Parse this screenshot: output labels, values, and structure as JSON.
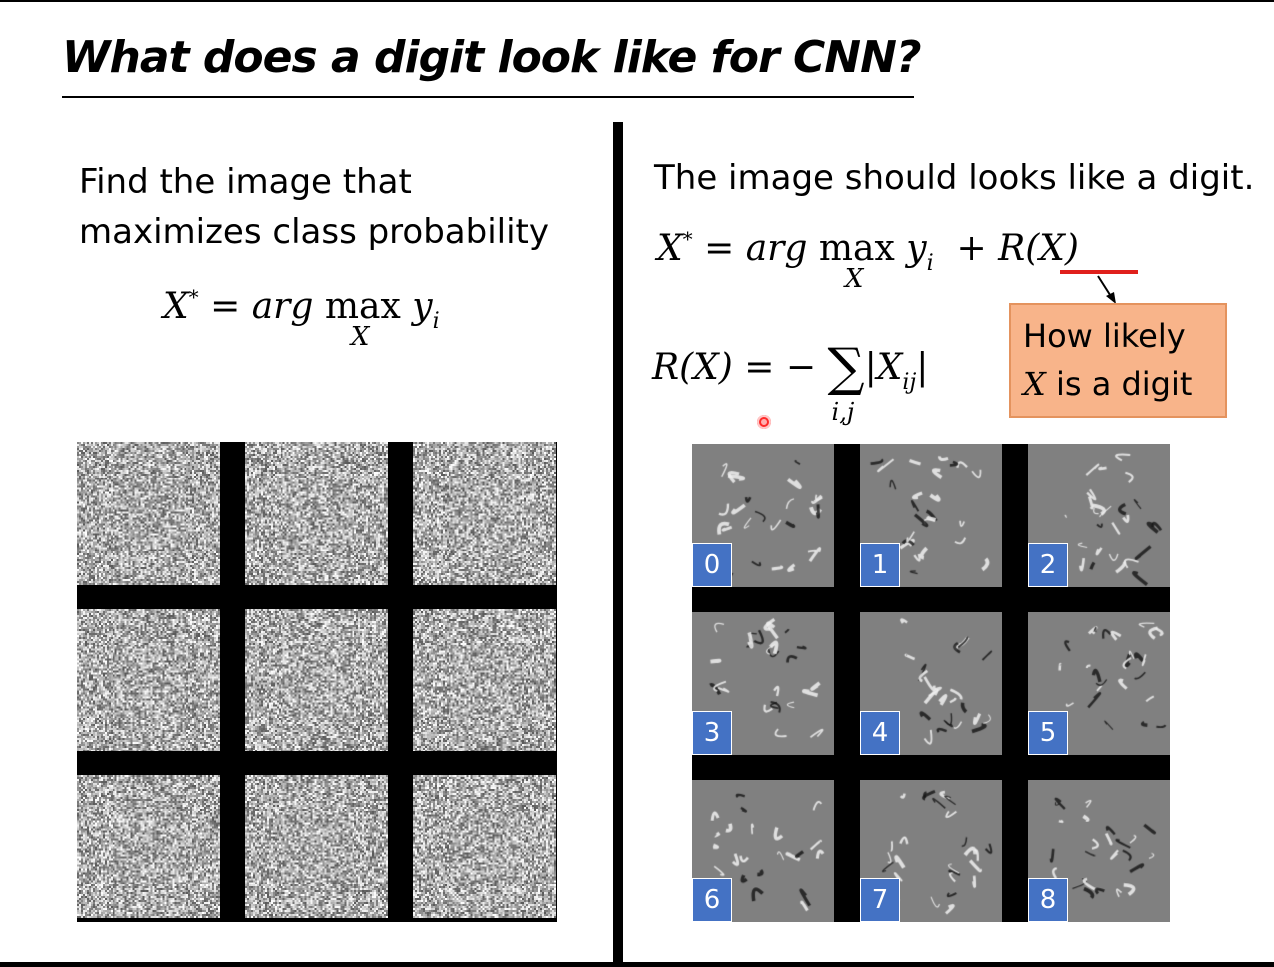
{
  "slide": {
    "title": "What does a digit look like for CNN?"
  },
  "left": {
    "line1": "Find the image that",
    "line2": "maximizes class probability",
    "formula": {
      "lhs": "X",
      "star": "*",
      "eq": "=",
      "arg": "arg",
      "max": "max",
      "under": "X",
      "y": "y",
      "sub": "i"
    }
  },
  "right": {
    "heading": "The image should looks like a digit.",
    "formula1": {
      "lhs": "X",
      "star": "*",
      "eq": "=",
      "arg": "arg",
      "max": "max",
      "under": "X",
      "y": "y",
      "sub": "i",
      "plus": "+",
      "reg": "R(X)"
    },
    "formula2": {
      "lhs": "R(X)",
      "eq": "= −",
      "sum": "∑",
      "under": "i,j",
      "body": "|X",
      "sub": "ij",
      "close": "|"
    },
    "callout": {
      "line1": "How likely",
      "line2_var": "X",
      "line2_rest": " is a digit"
    }
  },
  "digit_labels": [
    "0",
    "1",
    "2",
    "3",
    "4",
    "5",
    "6",
    "7",
    "8"
  ]
}
